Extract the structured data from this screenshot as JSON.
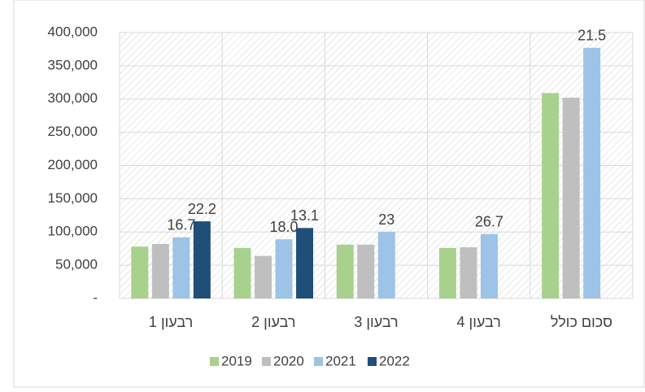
{
  "chart_data": {
    "type": "bar",
    "categories": [
      "רבעון 1",
      "רבעון 2",
      "רבעון 3",
      "רבעון 4",
      "סכום כולל"
    ],
    "series": [
      {
        "name": "2019",
        "color": "#a9d18e",
        "values": [
          78000,
          76000,
          81000,
          76000,
          309000
        ]
      },
      {
        "name": "2020",
        "color": "#bfbfbf",
        "values": [
          82000,
          64000,
          81000,
          77000,
          302000
        ]
      },
      {
        "name": "2021",
        "color": "#9dc3e6",
        "values": [
          92000,
          89000,
          100000,
          97000,
          377000
        ],
        "annotations": [
          "16.7",
          "18.0",
          "23",
          "26.7",
          "21.5"
        ]
      },
      {
        "name": "2022",
        "color": "#1f4e79",
        "values": [
          116000,
          106000,
          null,
          null,
          null
        ],
        "annotations": [
          "22.2",
          "13.1",
          null,
          null,
          null
        ]
      }
    ],
    "ylim": [
      0,
      400000
    ],
    "yticks": [
      {
        "value": 0,
        "label": "-"
      },
      {
        "value": 50000,
        "label": "50,000"
      },
      {
        "value": 100000,
        "label": "100,000"
      },
      {
        "value": 150000,
        "label": "150,000"
      },
      {
        "value": 200000,
        "label": "200,000"
      },
      {
        "value": 250000,
        "label": "250,000"
      },
      {
        "value": 300000,
        "label": "300,000"
      },
      {
        "value": 350000,
        "label": "350,000"
      },
      {
        "value": 400000,
        "label": "400,000"
      }
    ],
    "grid": true,
    "legend": "bottom"
  }
}
